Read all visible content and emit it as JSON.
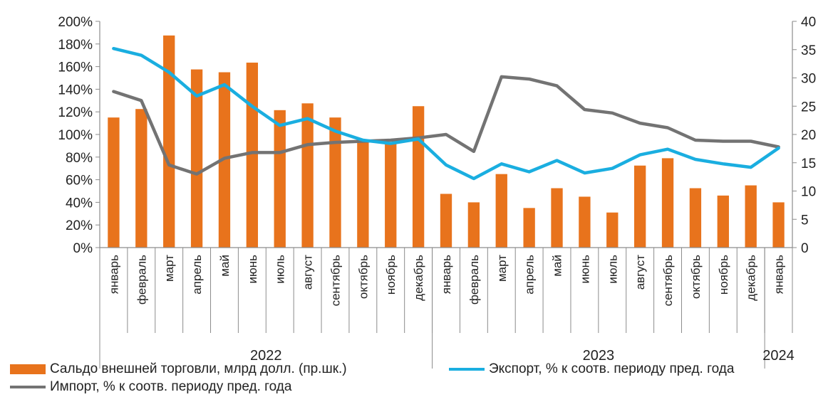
{
  "chart_data": {
    "type": "bar+line",
    "categories": [
      "январь",
      "февраль",
      "март",
      "апрель",
      "май",
      "июнь",
      "июль",
      "август",
      "сентябрь",
      "октябрь",
      "ноябрь",
      "декабрь",
      "январь",
      "февраль",
      "март",
      "апрель",
      "май",
      "июнь",
      "июль",
      "август",
      "сентябрь",
      "октябрь",
      "ноябрь",
      "декабрь",
      "январь"
    ],
    "year_groups": [
      {
        "label": "2022",
        "start": 0,
        "end": 11
      },
      {
        "label": "2023",
        "start": 12,
        "end": 23
      },
      {
        "label": "2024",
        "start": 24,
        "end": 24
      }
    ],
    "left_axis": {
      "ticks": [
        "0%",
        "20%",
        "40%",
        "60%",
        "80%",
        "100%",
        "120%",
        "140%",
        "160%",
        "180%",
        "200%"
      ],
      "min": 0,
      "max": 200
    },
    "right_axis": {
      "ticks": [
        "0",
        "5",
        "10",
        "15",
        "20",
        "25",
        "30",
        "35",
        "40"
      ],
      "min": 0,
      "max": 40
    },
    "series": [
      {
        "name": "Сальдо внешней торговли, млрд долл. (пр.шк.)",
        "kind": "bar",
        "axis": "right",
        "color": "#E8731C",
        "values": [
          23,
          24.5,
          37.5,
          31.5,
          31,
          32.7,
          24.3,
          25.5,
          23,
          19,
          18.5,
          25,
          9.5,
          8,
          13,
          7,
          10.5,
          9,
          6.2,
          14.5,
          15.8,
          10.5,
          9.2,
          11,
          8
        ]
      },
      {
        "name": "Экспорт, % к соотв. периоду пред. года",
        "kind": "line",
        "axis": "left",
        "color": "#1AAEE0",
        "values": [
          176,
          170,
          155,
          134,
          144,
          125,
          108,
          114,
          103,
          95,
          92,
          96,
          73,
          61,
          74,
          67,
          77,
          66,
          70,
          82,
          87,
          78,
          74,
          71,
          88
        ]
      },
      {
        "name": "Импорт, % к соотв. периоду пред. года",
        "kind": "line",
        "axis": "left",
        "color": "#737373",
        "values": [
          138,
          130,
          73,
          65,
          79,
          84,
          84,
          91,
          93,
          94,
          95,
          97,
          100,
          85,
          151,
          149,
          143,
          122,
          119,
          110,
          106,
          95,
          94,
          94,
          89
        ]
      }
    ]
  }
}
